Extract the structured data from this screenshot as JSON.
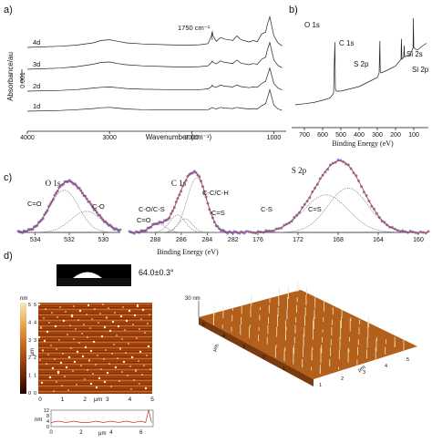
{
  "panels": {
    "a": "a)",
    "b": "b)",
    "c": "c)",
    "d": "d)"
  },
  "chart_data": [
    {
      "id": "ftir",
      "type": "line",
      "xlabel": "Wavenumber (cm⁻¹)",
      "ylabel": "Absorbance/au",
      "xlim": [
        4000,
        850
      ],
      "xticks": [
        4000,
        3000,
        2000,
        1000
      ],
      "annotation": "1750 cm⁻¹",
      "scale_bar_label": "0.001",
      "series": [
        {
          "name": "4d",
          "x": [
            4000,
            3600,
            3400,
            3200,
            3100,
            3000,
            2900,
            2800,
            2600,
            2300,
            2100,
            1900,
            1800,
            1760,
            1750,
            1740,
            1700,
            1650,
            1600,
            1500,
            1450,
            1400,
            1300,
            1250,
            1200,
            1150,
            1100,
            1080,
            1050,
            1000,
            950,
            900
          ],
          "y": [
            0.0,
            0.3,
            0.6,
            1.2,
            1.8,
            2.0,
            1.6,
            1.2,
            0.9,
            0.7,
            0.6,
            0.7,
            1.0,
            3.0,
            4.2,
            3.0,
            1.6,
            2.6,
            2.2,
            1.8,
            3.0,
            2.0,
            1.4,
            1.8,
            1.5,
            3.5,
            4.0,
            6.0,
            8.0,
            3.0,
            1.2,
            0.4
          ]
        },
        {
          "name": "3d",
          "x": [
            4000,
            3600,
            3400,
            3200,
            3100,
            3000,
            2900,
            2800,
            2600,
            2300,
            2100,
            1900,
            1800,
            1760,
            1750,
            1740,
            1700,
            1650,
            1600,
            1500,
            1450,
            1400,
            1300,
            1250,
            1200,
            1150,
            1100,
            1080,
            1050,
            1000,
            950,
            900
          ],
          "y": [
            0.0,
            0.3,
            0.7,
            1.3,
            1.8,
            1.9,
            1.5,
            1.2,
            0.9,
            0.7,
            0.6,
            0.7,
            0.9,
            1.8,
            2.2,
            1.8,
            1.4,
            2.2,
            1.8,
            1.5,
            2.4,
            1.6,
            1.2,
            1.5,
            1.3,
            2.6,
            3.2,
            5.0,
            7.0,
            2.4,
            1.0,
            0.4
          ]
        },
        {
          "name": "2d",
          "x": [
            4000,
            3600,
            3400,
            3200,
            3100,
            3000,
            2900,
            2800,
            2600,
            2300,
            2100,
            1900,
            1800,
            1760,
            1750,
            1740,
            1700,
            1650,
            1600,
            1500,
            1450,
            1400,
            1300,
            1250,
            1200,
            1150,
            1100,
            1080,
            1050,
            1000,
            950,
            900
          ],
          "y": [
            0.0,
            0.2,
            0.4,
            0.8,
            1.0,
            1.1,
            0.9,
            0.7,
            0.5,
            0.4,
            0.4,
            0.4,
            0.6,
            1.2,
            1.6,
            1.2,
            1.0,
            1.6,
            1.3,
            1.1,
            1.6,
            1.2,
            0.9,
            1.1,
            1.0,
            2.0,
            2.6,
            4.0,
            6.0,
            2.0,
            0.8,
            0.3
          ]
        },
        {
          "name": "1d",
          "x": [
            4000,
            3600,
            3400,
            3200,
            3100,
            3000,
            2900,
            2800,
            2600,
            2300,
            2100,
            1900,
            1800,
            1760,
            1750,
            1740,
            1700,
            1650,
            1600,
            1500,
            1450,
            1400,
            1300,
            1250,
            1200,
            1150,
            1100,
            1080,
            1050,
            1000,
            950,
            900
          ],
          "y": [
            0.0,
            0.2,
            0.4,
            0.7,
            0.9,
            1.0,
            0.8,
            0.6,
            0.4,
            0.3,
            0.3,
            0.3,
            0.4,
            0.8,
            1.0,
            0.8,
            0.6,
            1.0,
            0.8,
            0.7,
            1.0,
            0.8,
            0.6,
            0.7,
            0.6,
            1.4,
            2.0,
            3.4,
            5.6,
            1.6,
            0.6,
            0.2
          ]
        }
      ]
    },
    {
      "id": "xps-survey",
      "type": "line",
      "xlabel": "Binding Energy (eV)",
      "xlim": [
        750,
        30
      ],
      "xticks": [
        700,
        600,
        500,
        400,
        300,
        200,
        100
      ],
      "peak_labels": [
        {
          "label": "O 1s",
          "x": 532
        },
        {
          "label": "C 1s",
          "x": 285
        },
        {
          "label": "S 2p",
          "x": 168
        },
        {
          "label": "Si 2s",
          "x": 153
        },
        {
          "label": "Si 2p",
          "x": 102
        }
      ],
      "x": [
        750,
        700,
        650,
        600,
        560,
        540,
        533,
        530,
        525,
        500,
        450,
        400,
        350,
        300,
        290,
        286,
        284,
        280,
        250,
        200,
        170,
        168,
        165,
        155,
        153,
        150,
        120,
        104,
        102,
        100,
        80,
        50,
        30
      ],
      "y": [
        2.0,
        2.1,
        2.2,
        2.4,
        2.6,
        3.0,
        7.5,
        3.4,
        3.2,
        3.2,
        3.4,
        3.6,
        4.0,
        4.4,
        4.8,
        7.6,
        5.0,
        4.8,
        5.0,
        5.4,
        6.0,
        7.8,
        6.0,
        6.2,
        7.2,
        6.2,
        6.4,
        7.0,
        9.6,
        7.0,
        6.8,
        7.2,
        7.4
      ]
    },
    {
      "id": "xps-o1s",
      "type": "line",
      "title": "O 1s",
      "xlabel": "",
      "xlim": [
        535,
        529
      ],
      "xticks": [
        534,
        532,
        530
      ],
      "components": [
        {
          "name": "C=O",
          "center": 532.3,
          "height": 0.8,
          "sigma": 0.85
        },
        {
          "name": "C-O",
          "center": 531.0,
          "height": 0.4,
          "sigma": 0.9
        }
      ]
    },
    {
      "id": "xps-c1s",
      "type": "line",
      "title": "C 1s",
      "xlabel": "Binding Energy (eV)",
      "xlim": [
        290,
        281
      ],
      "xticks": [
        288,
        286,
        284,
        282
      ],
      "components": [
        {
          "name": "C-C/C-H",
          "center": 284.8,
          "height": 1.0,
          "sigma": 0.75
        },
        {
          "name": "C-O/C-S",
          "center": 286.3,
          "height": 0.32,
          "sigma": 0.6
        },
        {
          "name": "C=S",
          "center": 285.7,
          "height": 0.25,
          "sigma": 0.55
        },
        {
          "name": "C=O",
          "center": 287.8,
          "height": 0.16,
          "sigma": 0.6
        }
      ]
    },
    {
      "id": "xps-s2p",
      "type": "line",
      "title": "S 2p",
      "xlabel": "",
      "xlim": [
        177,
        159
      ],
      "xticks": [
        176,
        172,
        168,
        164,
        160
      ],
      "components": [
        {
          "name": "C-S",
          "center": 169.2,
          "height": 0.55,
          "sigma": 2.2
        },
        {
          "name": "C=S",
          "center": 167.0,
          "height": 0.65,
          "sigma": 2.0
        }
      ]
    }
  ],
  "afm": {
    "contact_angle": "64.0±0.3°",
    "zunit": "nm",
    "zticks": [
      "5",
      "4",
      "3",
      "2",
      "1",
      "0"
    ],
    "yticks": [
      "5",
      "4",
      "3",
      "2",
      "1",
      "0"
    ],
    "yunit": "μm",
    "xticks": [
      "0",
      "1",
      "2",
      "3",
      "4",
      "5"
    ],
    "xunit": "μm",
    "profile_unit": "nm",
    "profile_yticks": [
      "12",
      "8",
      "4",
      "0"
    ],
    "profile_xticks": [
      "0",
      "2",
      "4",
      "6"
    ],
    "profile_xunit": "μm",
    "profile_x": [
      0,
      0.5,
      1,
      1.5,
      2,
      2.5,
      3,
      3.5,
      4,
      4.5,
      5,
      5.5,
      6,
      6.3,
      6.5,
      6.7
    ],
    "profile_y": [
      3,
      4,
      3,
      4,
      3,
      3,
      4,
      3,
      4,
      3,
      4,
      3,
      4,
      3,
      12,
      3
    ],
    "surface3d": {
      "z_label": "30 nm",
      "y_label": "μm",
      "x_label": "μm",
      "y_ticks": [
        "5",
        "4",
        "3",
        "2",
        "1"
      ],
      "x_ticks": [
        "1",
        "2",
        "3",
        "4",
        "5"
      ]
    }
  }
}
